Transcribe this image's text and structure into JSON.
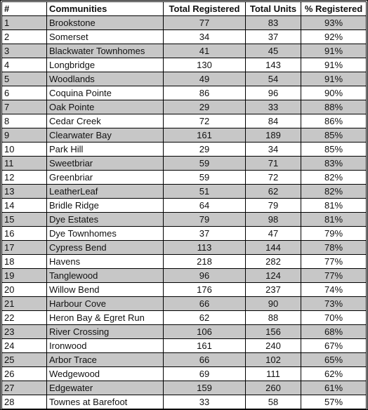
{
  "table": {
    "headers": [
      "#",
      "Communities",
      "Total Registered",
      "Total Units",
      "% Registered"
    ],
    "rows": [
      [
        "1",
        "Brookstone",
        "77",
        "83",
        "93%"
      ],
      [
        "2",
        "Somerset",
        "34",
        "37",
        "92%"
      ],
      [
        "3",
        "Blackwater Townhomes",
        "41",
        "45",
        "91%"
      ],
      [
        "4",
        "Longbridge",
        "130",
        "143",
        "91%"
      ],
      [
        "5",
        "Woodlands",
        "49",
        "54",
        "91%"
      ],
      [
        "6",
        "Coquina Pointe",
        "86",
        "96",
        "90%"
      ],
      [
        "7",
        "Oak Pointe",
        "29",
        "33",
        "88%"
      ],
      [
        "8",
        "Cedar Creek",
        "72",
        "84",
        "86%"
      ],
      [
        "9",
        "Clearwater Bay",
        "161",
        "189",
        "85%"
      ],
      [
        "10",
        "Park Hill",
        "29",
        "34",
        "85%"
      ],
      [
        "11",
        "Sweetbriar",
        "59",
        "71",
        "83%"
      ],
      [
        "12",
        "Greenbriar",
        "59",
        "72",
        "82%"
      ],
      [
        "13",
        "LeatherLeaf",
        "51",
        "62",
        "82%"
      ],
      [
        "14",
        "Bridle Ridge",
        "64",
        "79",
        "81%"
      ],
      [
        "15",
        "Dye Estates",
        "79",
        "98",
        "81%"
      ],
      [
        "16",
        "Dye Townhomes",
        "37",
        "47",
        "79%"
      ],
      [
        "17",
        "Cypress Bend",
        "113",
        "144",
        "78%"
      ],
      [
        "18",
        "Havens",
        "218",
        "282",
        "77%"
      ],
      [
        "19",
        "Tanglewood",
        "96",
        "124",
        "77%"
      ],
      [
        "20",
        "Willow Bend",
        "176",
        "237",
        "74%"
      ],
      [
        "21",
        "Harbour Cove",
        "66",
        "90",
        "73%"
      ],
      [
        "22",
        "Heron Bay & Egret Run",
        "62",
        "88",
        "70%"
      ],
      [
        "23",
        "River Crossing",
        "106",
        "156",
        "68%"
      ],
      [
        "24",
        "Ironwood",
        "161",
        "240",
        "67%"
      ],
      [
        "25",
        "Arbor Trace",
        "66",
        "102",
        "65%"
      ],
      [
        "26",
        "Wedgewood",
        "69",
        "111",
        "62%"
      ],
      [
        "27",
        "Edgewater",
        "159",
        "260",
        "61%"
      ],
      [
        "28",
        "Townes at Barefoot",
        "33",
        "58",
        "57%"
      ]
    ]
  },
  "colors": {
    "shaded_row": "#c7c7c7",
    "border": "#000000"
  }
}
